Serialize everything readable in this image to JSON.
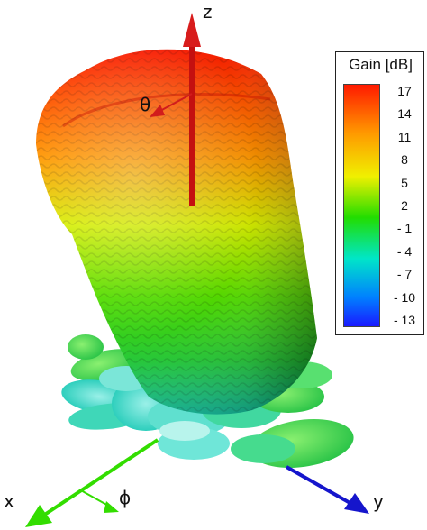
{
  "chart_data": {
    "type": "3d-radiation-pattern",
    "legend": {
      "title": "Gain [dB]",
      "ticks": [
        "17",
        "14",
        "11",
        "8",
        "5",
        "2",
        "- 1",
        "- 4",
        "- 7",
        "- 10",
        "- 13"
      ],
      "range": [
        -13,
        17
      ],
      "placement": "top-right"
    },
    "axes": {
      "z": "z",
      "x": "x",
      "y": "y",
      "theta": "θ",
      "phi": "ϕ"
    }
  },
  "colors": {
    "max": "#ff1a00",
    "high": "#ff9900",
    "mid_high": "#f0f000",
    "mid": "#22dd00",
    "mid_low": "#00e6c8",
    "low": "#0080ff",
    "min": "#1a1aff",
    "z_axis": "#cc1111",
    "x_axis": "#33dd00",
    "y_axis": "#1515cc"
  }
}
